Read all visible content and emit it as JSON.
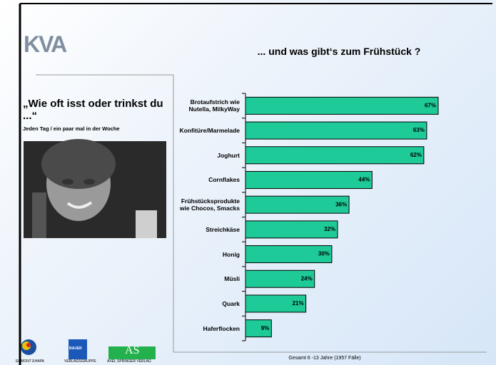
{
  "logo": "KVA",
  "sidebar": {
    "question": "„Wie oft isst oder trinkst du ...“",
    "subtitle": "Jeden Tag / ein paar mal in der Woche"
  },
  "chart_data": {
    "type": "bar",
    "orientation": "horizontal",
    "title": "... und was gibt‘s zum Frühstück ?",
    "categories": [
      "Brotaufstrich wie\nNutella, MilkyWay",
      "Konfitüre/Marmelade",
      "Joghurt",
      "Cornflakes",
      "Frühstücksprodukte\nwie Chocos, Smacks",
      "Streichkäse",
      "Honig",
      "Müsli",
      "Quark",
      "Haferflocken"
    ],
    "values": [
      67,
      63,
      62,
      44,
      36,
      32,
      30,
      24,
      21,
      9
    ],
    "value_labels": [
      "67%",
      "63%",
      "62%",
      "44%",
      "36%",
      "32%",
      "30%",
      "24%",
      "21%",
      "9%"
    ],
    "color": "#1ecb98"
  },
  "footer": {
    "note": "Gesamt 6 -13 Jahre (1957 Fälle)",
    "logos": [
      {
        "text": "EGMONT EHAPA"
      },
      {
        "mark": "BAUER",
        "text": "VERLAGSGRUPPE"
      },
      {
        "mark": "AS",
        "text": "AXEL SPRINGER VERLAG"
      }
    ]
  }
}
